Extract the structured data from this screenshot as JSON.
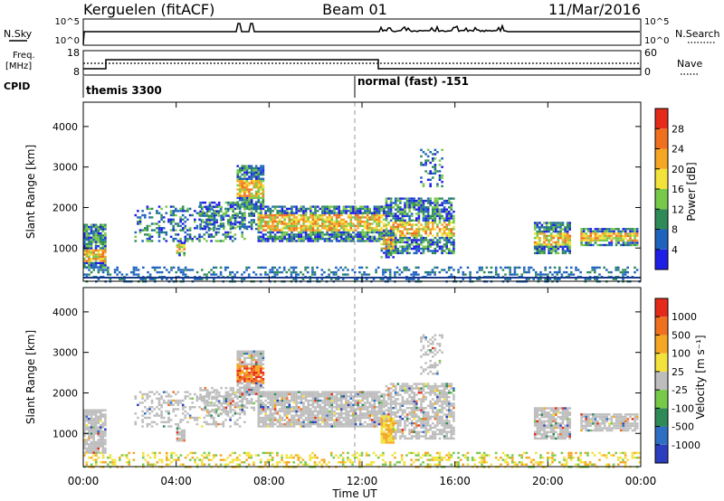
{
  "header": {
    "station": "Kerguelen (fitACF)",
    "beam": "Beam 01",
    "date": "11/Mar/2016"
  },
  "panels": {
    "nsky": {
      "left_label": "N.Sky",
      "right_label": "N.Search",
      "left_ticks": [
        "10^5",
        "10^0"
      ],
      "right_ticks": [
        "10^5",
        "10^0"
      ]
    },
    "freq": {
      "label_line1": "Freq.",
      "label_line2": "[MHz]",
      "left_ticks": [
        "18",
        "8"
      ],
      "right_ticks": [
        "60",
        "0"
      ],
      "right_label": "Nave"
    },
    "cpid": {
      "label": "CPID",
      "modes": [
        "themis 3300",
        "normal (fast) -151"
      ]
    }
  },
  "chart_data": [
    {
      "type": "heatmap",
      "name": "power",
      "ylabel": "Slant Range [km]",
      "y_ticks": [
        "1000",
        "2000",
        "3000",
        "4000"
      ],
      "colorbar_label": "Power [dB]",
      "colorbar_ticks": [
        "4",
        "8",
        "12",
        "16",
        "20",
        "24",
        "28"
      ],
      "colors": [
        "#1e1ee6",
        "#1e64be",
        "#2e8b57",
        "#77c94a",
        "#f2e23a",
        "#f5a623",
        "#f07020",
        "#e62a1a"
      ],
      "xlim": [
        "00:00",
        "24:00"
      ],
      "ylim": [
        180,
        4600
      ]
    },
    {
      "type": "heatmap",
      "name": "velocity",
      "ylabel": "Slant Range [km]",
      "y_ticks": [
        "1000",
        "2000",
        "3000",
        "4000"
      ],
      "colorbar_label": "Velocity [m s⁻¹]",
      "colorbar_ticks": [
        "1000",
        "500",
        "100",
        "25",
        "-25",
        "-100",
        "-500",
        "-1000"
      ],
      "colors": [
        "#2a3ebf",
        "#2e6fc4",
        "#2e8b57",
        "#77c94a",
        "#bdbdbd",
        "#f2e23a",
        "#f5a623",
        "#f07020",
        "#e62a1a"
      ],
      "xlim": [
        "00:00",
        "24:00"
      ],
      "ylim": [
        180,
        4600
      ]
    }
  ],
  "xaxis": {
    "ticks": [
      "00:00",
      "04:00",
      "08:00",
      "12:00",
      "16:00",
      "20:00",
      "00:00"
    ],
    "label": "Time UT"
  }
}
